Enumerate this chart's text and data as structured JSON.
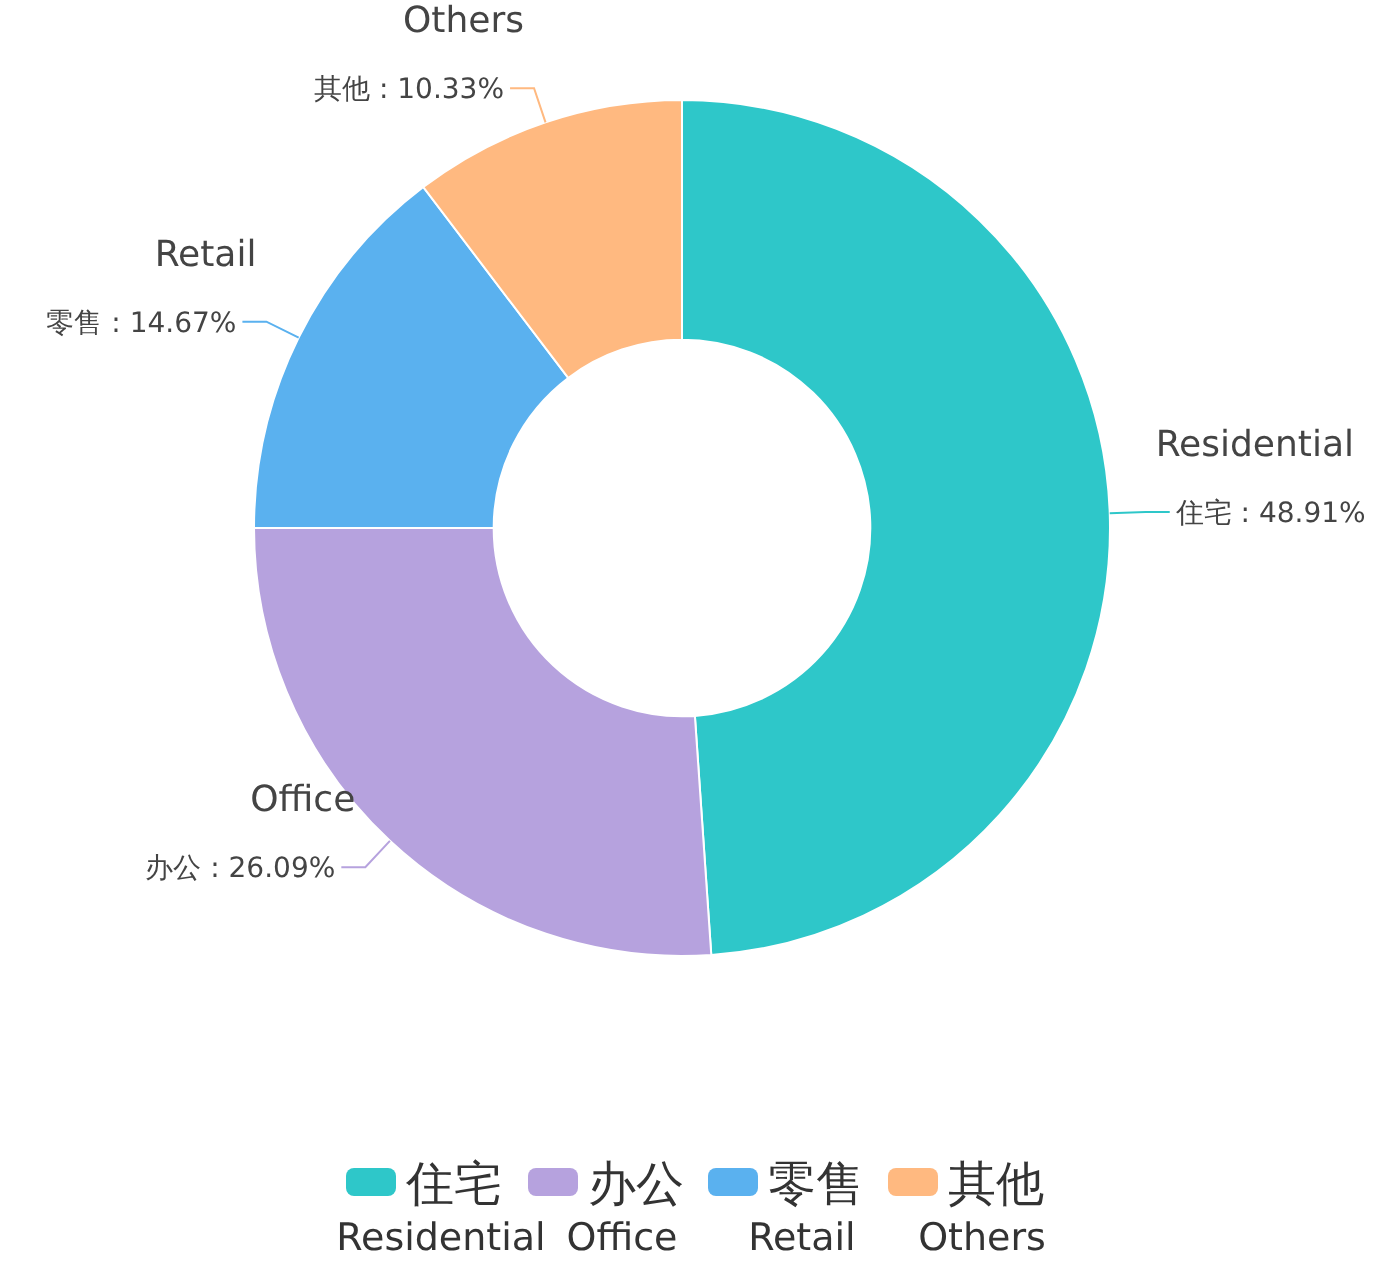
{
  "chart_data": {
    "type": "donut",
    "categories": [
      "住宅",
      "办公",
      "零售",
      "其他"
    ],
    "values": [
      48.91,
      26.09,
      14.67,
      10.33
    ],
    "colors": [
      "#2ec7c9",
      "#b6a2de",
      "#5ab1ef",
      "#ffb980"
    ],
    "annotations": [
      "Residential",
      "Office",
      "Retail",
      "Others"
    ],
    "value_labels": [
      "住宅 : 48.91%",
      "办公 : 26.09%",
      "零售 : 14.67%",
      "其他 : 10.33%"
    ],
    "legend": "bottom"
  }
}
